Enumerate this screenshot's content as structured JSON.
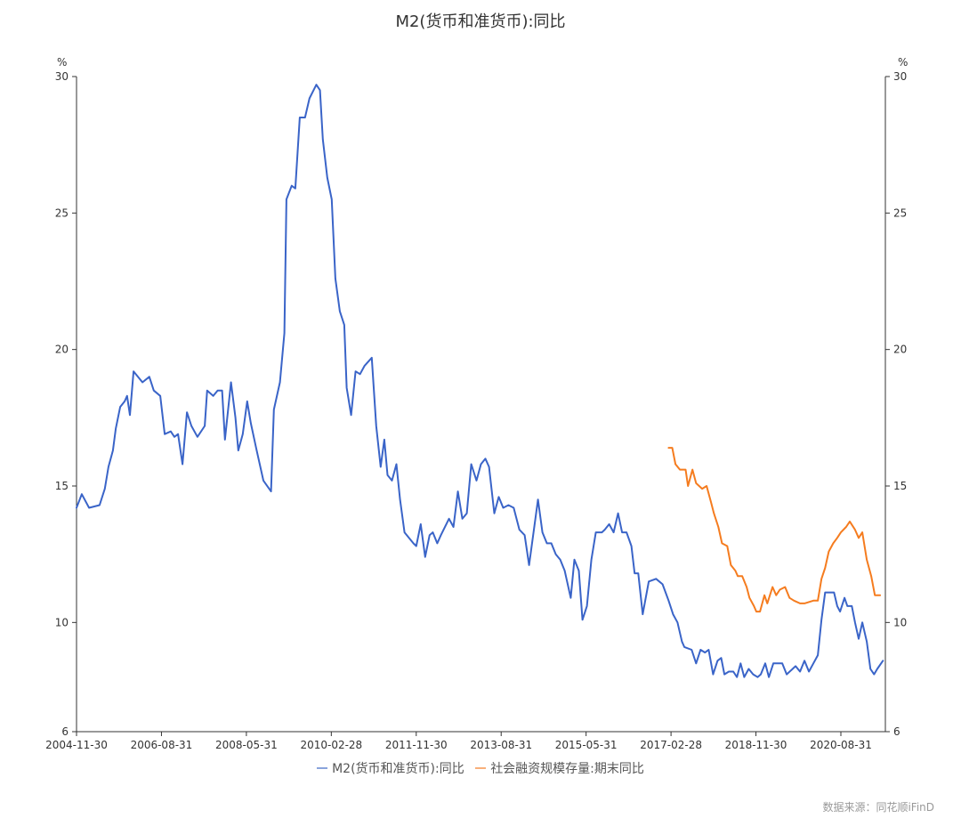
{
  "chart_data": {
    "type": "line",
    "title": "M2(货币和准货币):同比",
    "ylabel_left": "%",
    "ylabel_right": "%",
    "ylim": [
      6,
      30
    ],
    "yticks": [
      6,
      10,
      15,
      20,
      25,
      30
    ],
    "x_unit": "months since 2004-11-30",
    "xlim": [
      0,
      200
    ],
    "xticks": [
      {
        "m": 0,
        "label": "2004-11-30"
      },
      {
        "m": 21,
        "label": "2006-08-31"
      },
      {
        "m": 42,
        "label": "2008-05-31"
      },
      {
        "m": 63,
        "label": "2010-02-28"
      },
      {
        "m": 84,
        "label": "2011-11-30"
      },
      {
        "m": 105,
        "label": "2013-08-31"
      },
      {
        "m": 126,
        "label": "2015-05-31"
      },
      {
        "m": 147,
        "label": "2017-02-28"
      },
      {
        "m": 168,
        "label": "2018-11-30"
      },
      {
        "m": 189,
        "label": "2020-08-31"
      }
    ],
    "grid": false,
    "legend_position": "bottom",
    "series": [
      {
        "name": "M2(货币和准货币):同比",
        "color": "#3a64c8",
        "points": [
          [
            0,
            14.2
          ],
          [
            1.3,
            14.7
          ],
          [
            3.1,
            14.2
          ],
          [
            5.7,
            14.3
          ],
          [
            7.0,
            14.9
          ],
          [
            7.9,
            15.7
          ],
          [
            9.0,
            16.3
          ],
          [
            9.7,
            17.1
          ],
          [
            10.8,
            17.9
          ],
          [
            11.9,
            18.1
          ],
          [
            12.5,
            18.3
          ],
          [
            13.2,
            17.6
          ],
          [
            14.1,
            19.2
          ],
          [
            16.3,
            18.8
          ],
          [
            18.0,
            19.0
          ],
          [
            19.1,
            18.5
          ],
          [
            20.7,
            18.3
          ],
          [
            21.8,
            16.9
          ],
          [
            23.3,
            17.0
          ],
          [
            24.2,
            16.8
          ],
          [
            25.1,
            16.9
          ],
          [
            26.2,
            15.8
          ],
          [
            27.3,
            17.7
          ],
          [
            28.4,
            17.2
          ],
          [
            29.9,
            16.8
          ],
          [
            31.7,
            17.2
          ],
          [
            32.3,
            18.5
          ],
          [
            33.8,
            18.3
          ],
          [
            34.9,
            18.5
          ],
          [
            36.0,
            18.5
          ],
          [
            36.7,
            16.7
          ],
          [
            38.2,
            18.8
          ],
          [
            39.3,
            17.5
          ],
          [
            40.0,
            16.3
          ],
          [
            41.1,
            16.9
          ],
          [
            42.2,
            18.1
          ],
          [
            43.1,
            17.3
          ],
          [
            44.4,
            16.4
          ],
          [
            46.2,
            15.2
          ],
          [
            48.1,
            14.8
          ],
          [
            48.8,
            17.8
          ],
          [
            50.3,
            18.8
          ],
          [
            51.4,
            20.6
          ],
          [
            51.9,
            25.5
          ],
          [
            53.2,
            26.0
          ],
          [
            54.1,
            25.9
          ],
          [
            55.2,
            28.5
          ],
          [
            56.5,
            28.5
          ],
          [
            57.6,
            29.2
          ],
          [
            59.3,
            29.7
          ],
          [
            60.2,
            29.5
          ],
          [
            60.9,
            27.7
          ],
          [
            62.0,
            26.3
          ],
          [
            63.1,
            25.5
          ],
          [
            64.0,
            22.6
          ],
          [
            65.1,
            21.4
          ],
          [
            66.2,
            20.9
          ],
          [
            66.8,
            18.6
          ],
          [
            67.9,
            17.6
          ],
          [
            69.0,
            19.2
          ],
          [
            70.1,
            19.1
          ],
          [
            71.2,
            19.4
          ],
          [
            73.0,
            19.7
          ],
          [
            74.1,
            17.2
          ],
          [
            75.2,
            15.7
          ],
          [
            76.1,
            16.7
          ],
          [
            76.9,
            15.4
          ],
          [
            78.0,
            15.2
          ],
          [
            79.1,
            15.8
          ],
          [
            80.0,
            14.5
          ],
          [
            81.1,
            13.3
          ],
          [
            82.2,
            13.1
          ],
          [
            83.3,
            12.9
          ],
          [
            84.0,
            12.8
          ],
          [
            85.1,
            13.6
          ],
          [
            86.2,
            12.4
          ],
          [
            87.3,
            13.2
          ],
          [
            88.1,
            13.3
          ],
          [
            89.2,
            12.9
          ],
          [
            90.1,
            13.2
          ],
          [
            92.1,
            13.8
          ],
          [
            93.2,
            13.5
          ],
          [
            94.3,
            14.8
          ],
          [
            95.4,
            13.8
          ],
          [
            96.5,
            14.0
          ],
          [
            97.6,
            15.8
          ],
          [
            98.9,
            15.2
          ],
          [
            100.0,
            15.8
          ],
          [
            101.1,
            16.0
          ],
          [
            102.0,
            15.7
          ],
          [
            103.3,
            14.0
          ],
          [
            104.4,
            14.6
          ],
          [
            105.5,
            14.2
          ],
          [
            106.8,
            14.3
          ],
          [
            108.1,
            14.2
          ],
          [
            109.5,
            13.4
          ],
          [
            110.8,
            13.2
          ],
          [
            111.9,
            12.1
          ],
          [
            113.0,
            13.3
          ],
          [
            114.1,
            14.5
          ],
          [
            115.2,
            13.3
          ],
          [
            116.3,
            12.9
          ],
          [
            117.4,
            12.9
          ],
          [
            118.5,
            12.5
          ],
          [
            119.6,
            12.3
          ],
          [
            120.7,
            11.9
          ],
          [
            122.2,
            10.9
          ],
          [
            123.1,
            12.3
          ],
          [
            124.2,
            11.9
          ],
          [
            125.1,
            10.1
          ],
          [
            126.2,
            10.6
          ],
          [
            127.3,
            12.3
          ],
          [
            128.4,
            13.3
          ],
          [
            129.9,
            13.3
          ],
          [
            130.6,
            13.4
          ],
          [
            131.7,
            13.6
          ],
          [
            132.8,
            13.3
          ],
          [
            133.9,
            14.0
          ],
          [
            134.9,
            13.3
          ],
          [
            136.0,
            13.3
          ],
          [
            137.2,
            12.8
          ],
          [
            138.0,
            11.8
          ],
          [
            138.9,
            11.8
          ],
          [
            140.0,
            10.3
          ],
          [
            141.5,
            11.5
          ],
          [
            143.3,
            11.6
          ],
          [
            144.9,
            11.4
          ],
          [
            146.4,
            10.8
          ],
          [
            147.5,
            10.3
          ],
          [
            148.6,
            10.0
          ],
          [
            149.7,
            9.3
          ],
          [
            150.3,
            9.1
          ],
          [
            152.1,
            9.0
          ],
          [
            153.2,
            8.5
          ],
          [
            154.3,
            9.0
          ],
          [
            155.4,
            8.9
          ],
          [
            156.3,
            9.0
          ],
          [
            157.4,
            8.1
          ],
          [
            158.5,
            8.6
          ],
          [
            159.4,
            8.7
          ],
          [
            160.2,
            8.1
          ],
          [
            161.3,
            8.2
          ],
          [
            162.4,
            8.2
          ],
          [
            163.3,
            8.0
          ],
          [
            164.2,
            8.5
          ],
          [
            165.1,
            8.0
          ],
          [
            166.2,
            8.3
          ],
          [
            167.3,
            8.1
          ],
          [
            168.4,
            8.0
          ],
          [
            169.2,
            8.1
          ],
          [
            170.3,
            8.5
          ],
          [
            171.2,
            8.0
          ],
          [
            172.3,
            8.5
          ],
          [
            174.5,
            8.5
          ],
          [
            175.6,
            8.1
          ],
          [
            177.8,
            8.4
          ],
          [
            178.9,
            8.2
          ],
          [
            180.0,
            8.6
          ],
          [
            181.1,
            8.2
          ],
          [
            182.2,
            8.5
          ],
          [
            183.3,
            8.8
          ],
          [
            184.2,
            10.1
          ],
          [
            185.1,
            11.1
          ],
          [
            187.3,
            11.1
          ],
          [
            188.1,
            10.6
          ],
          [
            188.8,
            10.4
          ],
          [
            189.9,
            10.9
          ],
          [
            190.6,
            10.6
          ],
          [
            191.7,
            10.6
          ],
          [
            192.5,
            10.0
          ],
          [
            193.4,
            9.4
          ],
          [
            194.3,
            10.0
          ],
          [
            195.4,
            9.3
          ],
          [
            196.3,
            8.3
          ],
          [
            197.2,
            8.1
          ],
          [
            198.0,
            8.3
          ],
          [
            199.4,
            8.6
          ]
        ]
      },
      {
        "name": "社会融资规模存量:期末同比",
        "color": "#f57c1f",
        "points": [
          [
            146.4,
            16.4
          ],
          [
            147.3,
            16.4
          ],
          [
            148.1,
            15.8
          ],
          [
            149.2,
            15.6
          ],
          [
            150.6,
            15.6
          ],
          [
            151.2,
            15.0
          ],
          [
            152.3,
            15.6
          ],
          [
            153.2,
            15.1
          ],
          [
            154.7,
            14.9
          ],
          [
            155.8,
            15.0
          ],
          [
            156.9,
            14.4
          ],
          [
            157.6,
            14.0
          ],
          [
            158.7,
            13.5
          ],
          [
            159.6,
            12.9
          ],
          [
            160.9,
            12.8
          ],
          [
            161.8,
            12.1
          ],
          [
            162.9,
            11.9
          ],
          [
            163.5,
            11.7
          ],
          [
            164.6,
            11.7
          ],
          [
            165.7,
            11.3
          ],
          [
            166.4,
            10.9
          ],
          [
            167.5,
            10.6
          ],
          [
            168.1,
            10.4
          ],
          [
            169.0,
            10.4
          ],
          [
            170.1,
            11.0
          ],
          [
            170.8,
            10.7
          ],
          [
            172.1,
            11.3
          ],
          [
            173.0,
            11.0
          ],
          [
            173.9,
            11.2
          ],
          [
            175.2,
            11.3
          ],
          [
            176.3,
            10.9
          ],
          [
            177.4,
            10.8
          ],
          [
            178.9,
            10.7
          ],
          [
            180.0,
            10.7
          ],
          [
            182.2,
            10.8
          ],
          [
            183.3,
            10.8
          ],
          [
            184.2,
            11.6
          ],
          [
            185.1,
            12.0
          ],
          [
            186.0,
            12.6
          ],
          [
            187.1,
            12.9
          ],
          [
            188.1,
            13.1
          ],
          [
            189.0,
            13.3
          ],
          [
            190.3,
            13.5
          ],
          [
            191.2,
            13.7
          ],
          [
            192.5,
            13.4
          ],
          [
            193.4,
            13.1
          ],
          [
            194.3,
            13.3
          ],
          [
            195.4,
            12.3
          ],
          [
            196.5,
            11.7
          ],
          [
            197.4,
            11.0
          ],
          [
            198.7,
            11.0
          ]
        ]
      }
    ]
  },
  "source": "数据来源：同花顺iFinD"
}
